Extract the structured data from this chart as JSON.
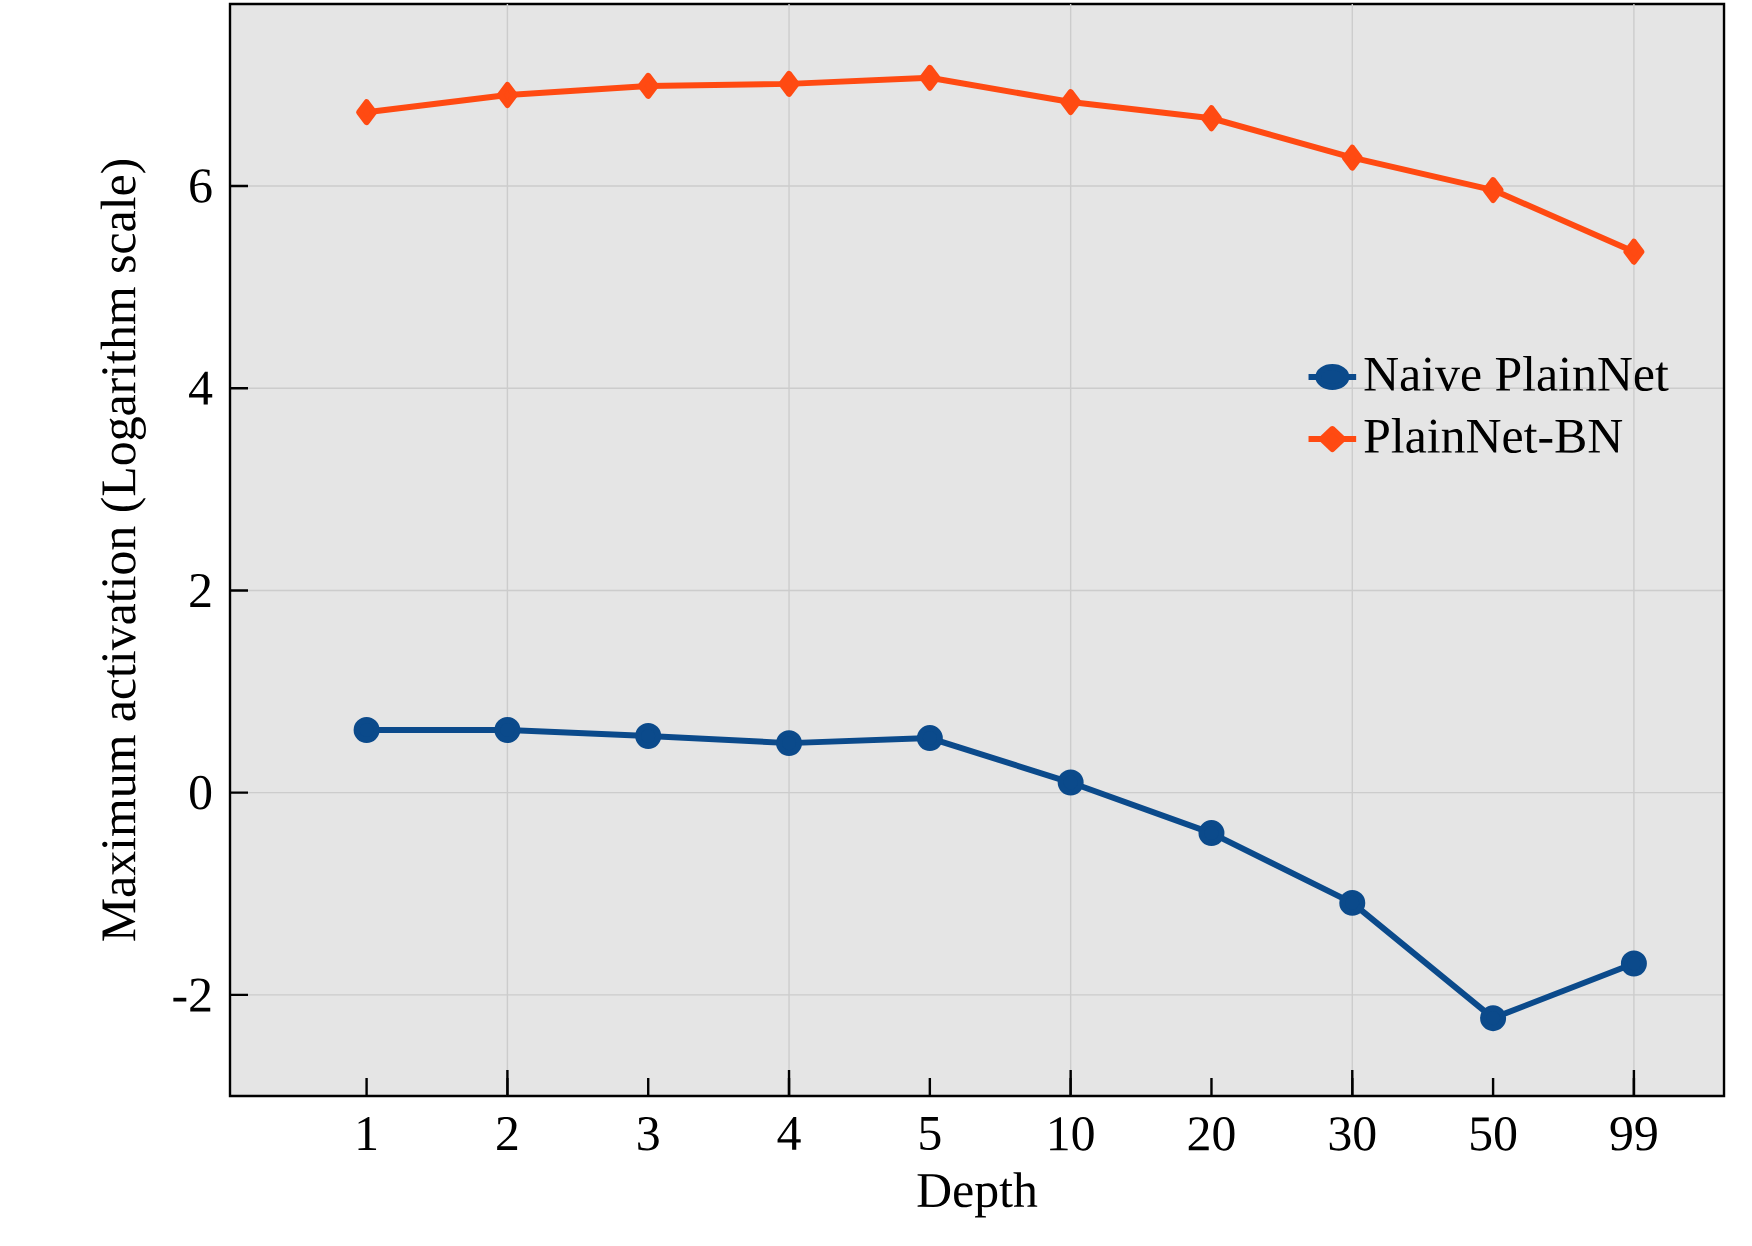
{
  "chart_data": {
    "type": "line",
    "xlabel": "Depth",
    "ylabel": "Maximum activation (Logarithm scale)",
    "categories": [
      "1",
      "2",
      "3",
      "4",
      "5",
      "10",
      "20",
      "30",
      "50",
      "99"
    ],
    "series": [
      {
        "name": "Naive PlainNet",
        "color": "#0b4a8b",
        "marker": "circle",
        "values": [
          0.62,
          0.62,
          0.56,
          0.49,
          0.54,
          0.1,
          -0.4,
          -1.09,
          -2.23,
          -1.69
        ]
      },
      {
        "name": "PlainNet-BN",
        "color": "#ff4a12",
        "marker": "diamond",
        "values": [
          6.73,
          6.9,
          6.99,
          7.01,
          7.07,
          6.83,
          6.67,
          6.28,
          5.96,
          5.35
        ]
      }
    ],
    "ylim": [
      -3,
      7.8
    ],
    "yticks": [
      -2,
      0,
      2,
      4,
      6
    ],
    "grid": true,
    "legend": "right",
    "line_style": "solid"
  }
}
